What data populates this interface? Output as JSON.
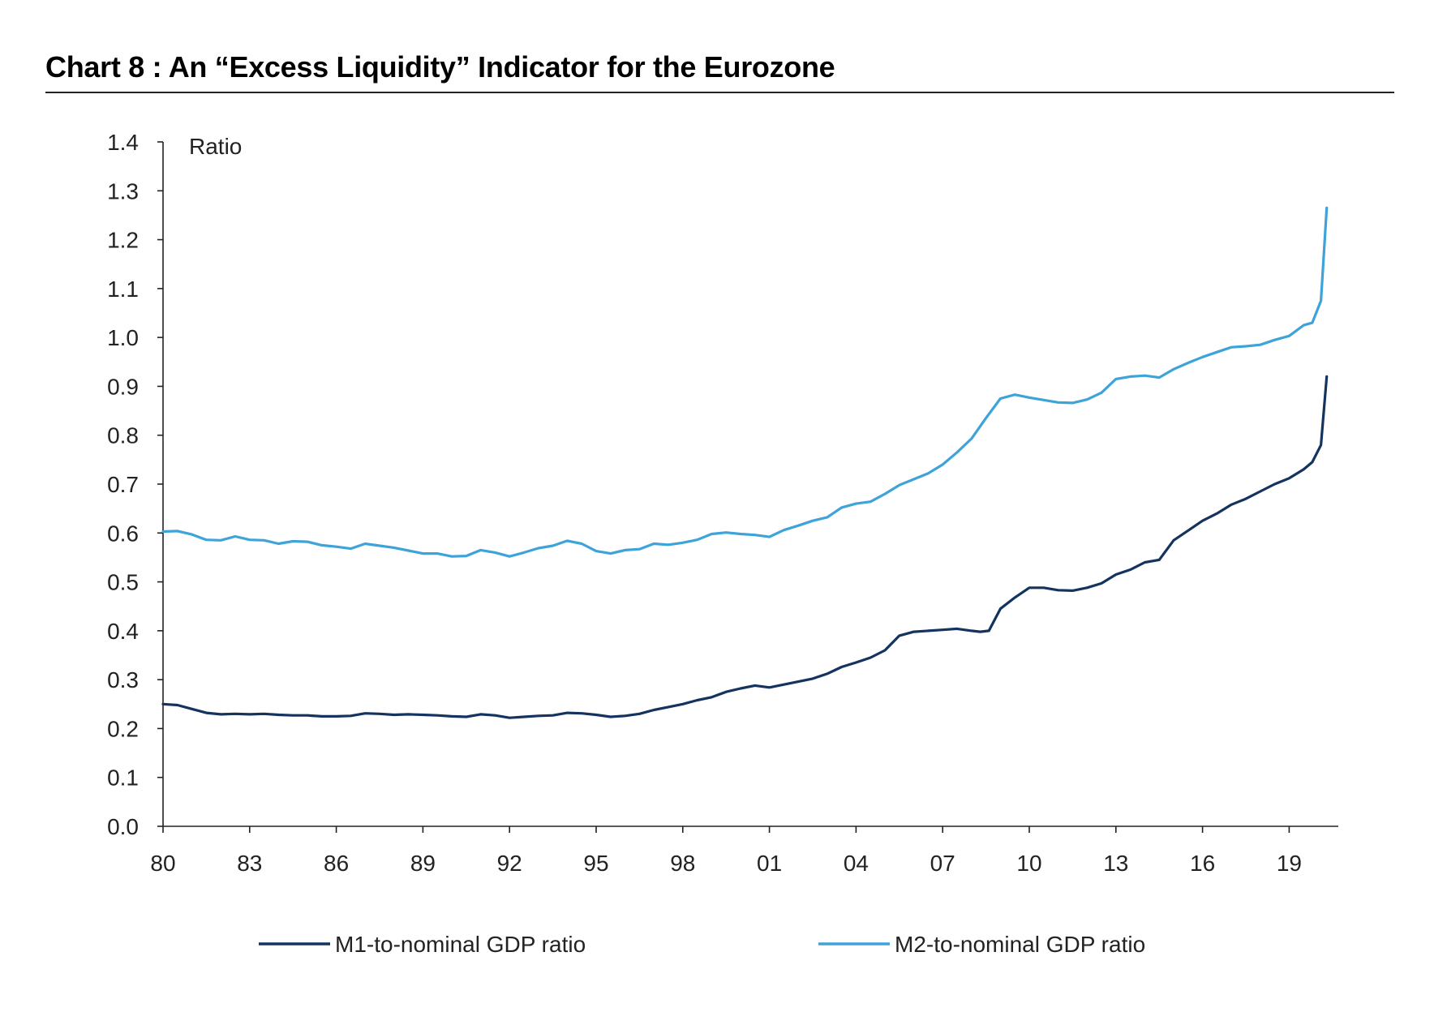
{
  "title": "Chart 8 : An “Excess Liquidity” Indicator for the Eurozone",
  "colors": {
    "m1": "#14335f",
    "m2": "#3ea3d8",
    "axis": "#222222"
  },
  "chart_data": {
    "type": "line",
    "title": "Chart 8 : An “Excess Liquidity” Indicator for the Eurozone",
    "unit_label": "Ratio",
    "xlabel": "",
    "ylabel": "",
    "xlim": [
      1980,
      2020.8
    ],
    "ylim": [
      0,
      1.4
    ],
    "y_ticks": [
      0.0,
      0.1,
      0.2,
      0.3,
      0.4,
      0.5,
      0.6,
      0.7,
      0.8,
      0.9,
      1.0,
      1.1,
      1.2,
      1.3,
      1.4
    ],
    "y_tick_labels": [
      "0.0",
      "0.1",
      "0.2",
      "0.3",
      "0.4",
      "0.5",
      "0.6",
      "0.7",
      "0.8",
      "0.9",
      "1.0",
      "1.1",
      "1.2",
      "1.3",
      "1.4"
    ],
    "x_ticks": [
      1980,
      1983,
      1986,
      1989,
      1992,
      1995,
      1998,
      2001,
      2004,
      2007,
      2010,
      2013,
      2016,
      2019
    ],
    "x_tick_labels": [
      "80",
      "83",
      "86",
      "89",
      "92",
      "95",
      "98",
      "01",
      "04",
      "07",
      "10",
      "13",
      "16",
      "19"
    ],
    "grid": false,
    "legend_position": "bottom",
    "series": [
      {
        "name": "M1-to-nominal GDP ratio",
        "color": "#14335f",
        "x": [
          1980,
          1980.5,
          1981,
          1981.5,
          1982,
          1982.5,
          1983,
          1983.5,
          1984,
          1984.5,
          1985,
          1985.5,
          1986,
          1986.5,
          1987,
          1987.5,
          1988,
          1988.5,
          1989,
          1989.5,
          1990,
          1990.5,
          1991,
          1991.5,
          1992,
          1992.5,
          1993,
          1993.5,
          1994,
          1994.5,
          1995,
          1995.5,
          1996,
          1996.5,
          1997,
          1997.5,
          1998,
          1998.5,
          1999,
          1999.5,
          2000,
          2000.5,
          2001,
          2001.5,
          2002,
          2002.5,
          2003,
          2003.5,
          2004,
          2004.5,
          2005,
          2005.5,
          2006,
          2006.5,
          2007,
          2007.5,
          2008,
          2008.3,
          2008.6,
          2009,
          2009.5,
          2010,
          2010.5,
          2011,
          2011.5,
          2012,
          2012.5,
          2013,
          2013.5,
          2014,
          2014.5,
          2015,
          2015.5,
          2016,
          2016.5,
          2017,
          2017.5,
          2018,
          2018.5,
          2019,
          2019.5,
          2019.8,
          2020.1,
          2020.3
        ],
        "y": [
          0.25,
          0.248,
          0.24,
          0.232,
          0.229,
          0.23,
          0.229,
          0.23,
          0.228,
          0.227,
          0.227,
          0.225,
          0.225,
          0.226,
          0.231,
          0.23,
          0.228,
          0.229,
          0.228,
          0.227,
          0.225,
          0.224,
          0.229,
          0.227,
          0.222,
          0.224,
          0.226,
          0.227,
          0.232,
          0.231,
          0.228,
          0.224,
          0.226,
          0.23,
          0.238,
          0.244,
          0.25,
          0.258,
          0.264,
          0.275,
          0.282,
          0.288,
          0.284,
          0.29,
          0.296,
          0.302,
          0.312,
          0.326,
          0.335,
          0.345,
          0.36,
          0.39,
          0.398,
          0.4,
          0.402,
          0.404,
          0.4,
          0.398,
          0.4,
          0.445,
          0.468,
          0.488,
          0.488,
          0.483,
          0.482,
          0.488,
          0.497,
          0.515,
          0.525,
          0.54,
          0.545,
          0.585,
          0.605,
          0.625,
          0.64,
          0.658,
          0.67,
          0.685,
          0.7,
          0.712,
          0.73,
          0.745,
          0.78,
          0.92
        ]
      },
      {
        "name": "M2-to-nominal GDP ratio",
        "color": "#3ea3d8",
        "x": [
          1980,
          1980.5,
          1981,
          1981.5,
          1982,
          1982.5,
          1983,
          1983.5,
          1984,
          1984.5,
          1985,
          1985.5,
          1986,
          1986.5,
          1987,
          1987.5,
          1988,
          1988.5,
          1989,
          1989.5,
          1990,
          1990.5,
          1991,
          1991.5,
          1992,
          1992.5,
          1993,
          1993.5,
          1994,
          1994.5,
          1995,
          1995.5,
          1996,
          1996.5,
          1997,
          1997.5,
          1998,
          1998.5,
          1999,
          1999.5,
          2000,
          2000.5,
          2001,
          2001.5,
          2002,
          2002.5,
          2003,
          2003.5,
          2004,
          2004.5,
          2005,
          2005.5,
          2006,
          2006.5,
          2007,
          2007.5,
          2008,
          2008.5,
          2009,
          2009.5,
          2010,
          2010.5,
          2011,
          2011.5,
          2012,
          2012.5,
          2013,
          2013.5,
          2014,
          2014.5,
          2015,
          2015.5,
          2016,
          2016.5,
          2017,
          2017.5,
          2018,
          2018.5,
          2019,
          2019.5,
          2019.8,
          2020.1,
          2020.3
        ],
        "y": [
          0.603,
          0.604,
          0.597,
          0.586,
          0.585,
          0.593,
          0.586,
          0.585,
          0.578,
          0.583,
          0.582,
          0.575,
          0.572,
          0.568,
          0.578,
          0.574,
          0.57,
          0.564,
          0.558,
          0.558,
          0.552,
          0.553,
          0.565,
          0.56,
          0.552,
          0.56,
          0.569,
          0.574,
          0.584,
          0.578,
          0.563,
          0.558,
          0.565,
          0.567,
          0.578,
          0.576,
          0.58,
          0.586,
          0.598,
          0.601,
          0.598,
          0.596,
          0.592,
          0.606,
          0.615,
          0.625,
          0.632,
          0.652,
          0.66,
          0.664,
          0.68,
          0.698,
          0.71,
          0.722,
          0.74,
          0.765,
          0.793,
          0.835,
          0.875,
          0.883,
          0.877,
          0.872,
          0.867,
          0.866,
          0.873,
          0.887,
          0.915,
          0.92,
          0.922,
          0.918,
          0.935,
          0.948,
          0.96,
          0.97,
          0.98,
          0.982,
          0.985,
          0.995,
          1.003,
          1.025,
          1.03,
          1.075,
          1.265
        ]
      }
    ]
  }
}
